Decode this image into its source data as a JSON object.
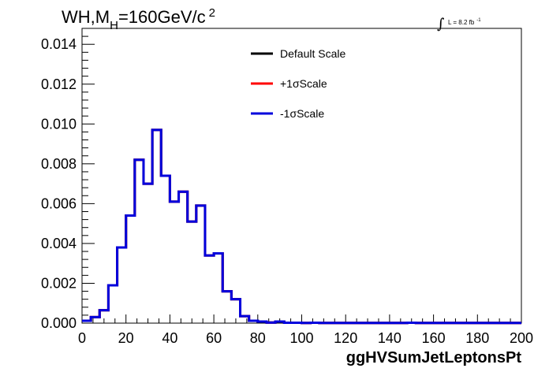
{
  "chart_data": {
    "type": "histogram",
    "title": {
      "prefix": "WH,M",
      "sub": "H",
      "suffix": "=160GeV/c",
      "sup": "2"
    },
    "lumi": {
      "integral": "∫",
      "text": "L = 8.2 fb",
      "sup": "-1"
    },
    "xlabel": "ggHVSumJetLeptonsPt",
    "xlim": [
      0,
      200
    ],
    "ylim": [
      0,
      0.0148
    ],
    "xticks": [
      "0",
      "20",
      "40",
      "60",
      "80",
      "100",
      "120",
      "140",
      "160",
      "180",
      "200"
    ],
    "yticks": [
      "0.000",
      "0.002",
      "0.004",
      "0.006",
      "0.008",
      "0.010",
      "0.012",
      "0.014"
    ],
    "bin_width": 4,
    "bin_edges_start": 0,
    "series": [
      {
        "name": "Default Scale",
        "color": "#000000",
        "values": [
          0.00012,
          0.0003,
          0.00065,
          0.0019,
          0.0038,
          0.0054,
          0.0082,
          0.007,
          0.0097,
          0.0074,
          0.0061,
          0.0066,
          0.0051,
          0.0059,
          0.0034,
          0.0035,
          0.0016,
          0.0012,
          0.00035,
          0.00012,
          8e-05,
          3e-05,
          8e-05,
          2e-05,
          2e-05,
          1e-05,
          2e-05,
          1e-05,
          1e-05,
          1e-05,
          1e-05,
          1e-05,
          1e-05,
          1e-05,
          1e-05,
          1e-05,
          1e-05,
          2e-05,
          1e-05,
          1e-05,
          1e-05,
          1e-05,
          1e-05,
          1e-05,
          1e-05,
          1e-05,
          1e-05,
          1e-05,
          1e-05,
          1e-05
        ]
      },
      {
        "name": "+1σScale",
        "color": "#ff0000",
        "values": [
          0.00012,
          0.0003,
          0.00065,
          0.0019,
          0.0038,
          0.0054,
          0.0082,
          0.007,
          0.0097,
          0.0074,
          0.0061,
          0.0066,
          0.0051,
          0.0059,
          0.0034,
          0.0035,
          0.0016,
          0.0012,
          0.00035,
          0.00012,
          8e-05,
          3e-05,
          8e-05,
          2e-05,
          2e-05,
          1e-05,
          2e-05,
          1e-05,
          1e-05,
          1e-05,
          1e-05,
          1e-05,
          1e-05,
          1e-05,
          1e-05,
          1e-05,
          1e-05,
          2e-05,
          1e-05,
          1e-05,
          1e-05,
          1e-05,
          1e-05,
          1e-05,
          1e-05,
          1e-05,
          1e-05,
          1e-05,
          1e-05,
          1e-05
        ]
      },
      {
        "name": "-1σScale",
        "color": "#0000dd",
        "values": [
          0.00012,
          0.0003,
          0.00065,
          0.0019,
          0.0038,
          0.0054,
          0.0082,
          0.007,
          0.0097,
          0.0074,
          0.0061,
          0.0066,
          0.0051,
          0.0059,
          0.0034,
          0.0035,
          0.0016,
          0.0012,
          0.00035,
          0.00012,
          8e-05,
          3e-05,
          8e-05,
          2e-05,
          2e-05,
          1e-05,
          2e-05,
          1e-05,
          1e-05,
          1e-05,
          1e-05,
          1e-05,
          1e-05,
          1e-05,
          1e-05,
          1e-05,
          1e-05,
          2e-05,
          1e-05,
          1e-05,
          1e-05,
          1e-05,
          1e-05,
          1e-05,
          1e-05,
          1e-05,
          1e-05,
          1e-05,
          1e-05,
          1e-05
        ]
      }
    ],
    "legend_position": "top-center",
    "grid": false
  }
}
